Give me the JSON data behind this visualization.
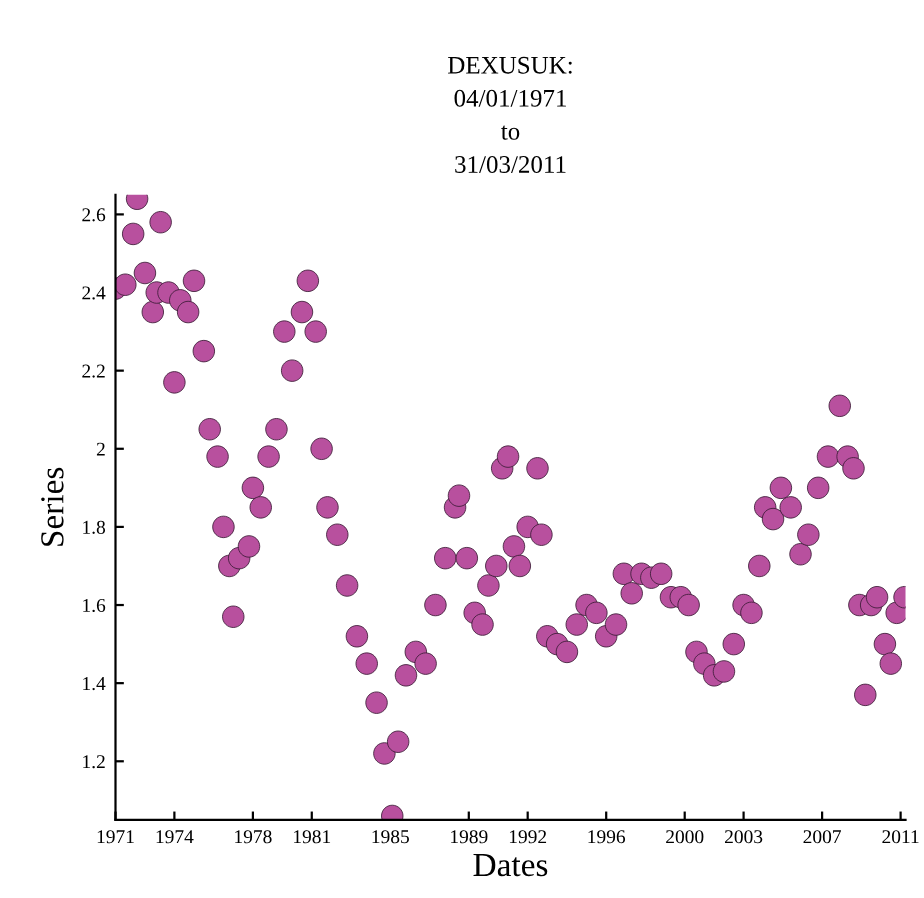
{
  "chart_data": {
    "type": "scatter",
    "title": "DEXUSUK:\n04/01/1971\nto\n31/03/2011",
    "xlabel": "Dates",
    "ylabel": "Series",
    "marker": "circle",
    "grid": false,
    "xlim": [
      1971,
      2011.25
    ],
    "ylim": [
      1.05,
      2.65
    ],
    "xticks": [
      1971,
      1974,
      1978,
      1981,
      1985,
      1989,
      1992,
      1996,
      2000,
      2003,
      2007,
      2011
    ],
    "yticks": [
      1.2,
      1.4,
      1.6,
      1.8,
      2,
      2.2,
      2.4,
      2.6
    ],
    "series": [
      {
        "color": "#b8509e",
        "x": [
          1971.0,
          1971.5,
          1971.9,
          1972.1,
          1972.5,
          1972.9,
          1973.1,
          1973.3,
          1973.7,
          1974.0,
          1974.3,
          1974.7,
          1975.0,
          1975.5,
          1975.8,
          1976.2,
          1976.5,
          1976.8,
          1977.0,
          1977.3,
          1977.8,
          1978.0,
          1978.4,
          1978.8,
          1979.2,
          1979.6,
          1980.0,
          1980.5,
          1980.8,
          1981.2,
          1981.5,
          1981.8,
          1982.3,
          1982.8,
          1983.3,
          1983.8,
          1984.3,
          1984.7,
          1985.1,
          1985.4,
          1985.8,
          1986.3,
          1986.8,
          1987.3,
          1987.8,
          1988.3,
          1988.5,
          1988.9,
          1989.3,
          1989.7,
          1990.0,
          1990.4,
          1990.7,
          1991.0,
          1991.3,
          1991.6,
          1992.0,
          1992.5,
          1992.7,
          1993.0,
          1993.5,
          1994.0,
          1994.5,
          1995.0,
          1995.5,
          1996.0,
          1996.5,
          1996.9,
          1997.3,
          1997.8,
          1998.3,
          1998.8,
          1999.3,
          1999.8,
          2000.2,
          2000.6,
          2001.0,
          2001.5,
          2002.0,
          2002.5,
          2003.0,
          2003.4,
          2003.8,
          2004.1,
          2004.5,
          2004.9,
          2005.4,
          2005.9,
          2006.3,
          2006.8,
          2007.3,
          2007.9,
          2008.3,
          2008.6,
          2008.9,
          2009.2,
          2009.5,
          2009.8,
          2010.2,
          2010.5,
          2010.8,
          2011.2
        ],
        "values": [
          2.41,
          2.42,
          2.55,
          2.64,
          2.45,
          2.35,
          2.4,
          2.58,
          2.4,
          2.17,
          2.38,
          2.35,
          2.43,
          2.25,
          2.05,
          1.98,
          1.8,
          1.7,
          1.57,
          1.72,
          1.75,
          1.9,
          1.85,
          1.98,
          2.05,
          2.3,
          2.2,
          2.35,
          2.43,
          2.3,
          2.0,
          1.85,
          1.78,
          1.65,
          1.52,
          1.45,
          1.35,
          1.22,
          1.06,
          1.25,
          1.42,
          1.48,
          1.45,
          1.6,
          1.72,
          1.85,
          1.88,
          1.72,
          1.58,
          1.55,
          1.65,
          1.7,
          1.95,
          1.98,
          1.75,
          1.7,
          1.8,
          1.95,
          1.78,
          1.52,
          1.5,
          1.48,
          1.55,
          1.6,
          1.58,
          1.52,
          1.55,
          1.68,
          1.63,
          1.68,
          1.67,
          1.68,
          1.62,
          1.62,
          1.6,
          1.48,
          1.45,
          1.42,
          1.43,
          1.5,
          1.6,
          1.58,
          1.7,
          1.85,
          1.82,
          1.9,
          1.85,
          1.73,
          1.78,
          1.9,
          1.98,
          2.11,
          1.98,
          1.95,
          1.6,
          1.37,
          1.6,
          1.62,
          1.5,
          1.45,
          1.58,
          1.62
        ]
      }
    ]
  }
}
